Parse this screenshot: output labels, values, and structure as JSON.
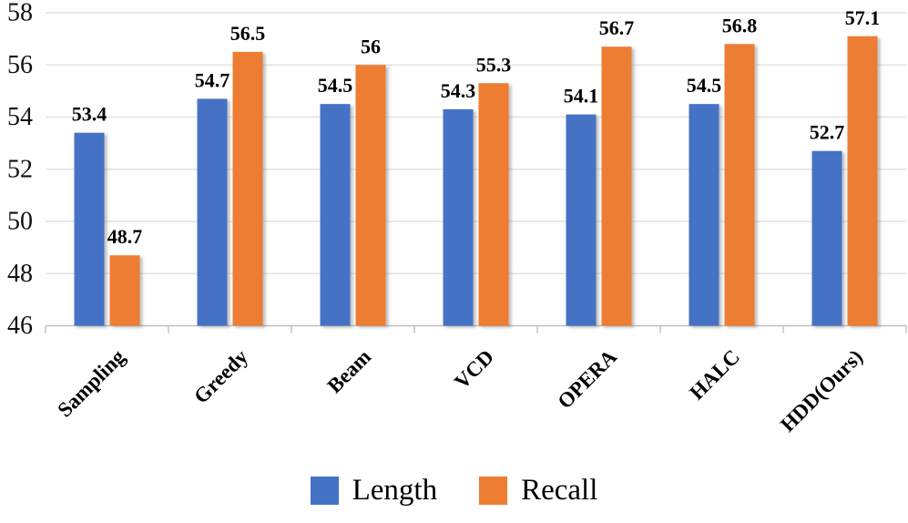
{
  "chart_data": {
    "type": "bar",
    "categories": [
      "Sampling",
      "Greedy",
      "Beam",
      "VCD",
      "OPERA",
      "HALC",
      "HDD(Ours)"
    ],
    "series": [
      {
        "name": "Length",
        "color": "#4472C4",
        "values": [
          53.4,
          54.7,
          54.5,
          54.3,
          54.1,
          54.5,
          52.7
        ]
      },
      {
        "name": "Recall",
        "color": "#ED7D31",
        "values": [
          48.7,
          56.5,
          56,
          55.3,
          56.7,
          56.8,
          57.1
        ]
      }
    ],
    "ylim": [
      46,
      58
    ],
    "yticks": [
      46,
      48,
      50,
      52,
      54,
      56,
      58
    ],
    "grid": true,
    "value_labels": true,
    "legend_position": "bottom",
    "xlabel": "",
    "ylabel": "",
    "title": ""
  }
}
